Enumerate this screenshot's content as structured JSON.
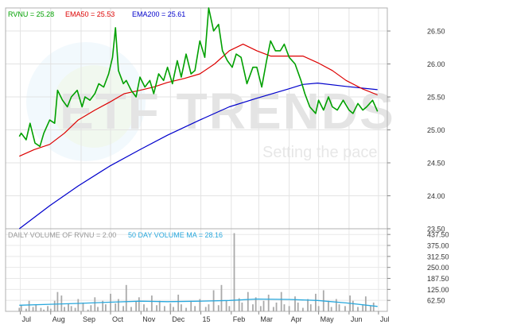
{
  "chart_data": [
    {
      "type": "line",
      "panel": "price",
      "legend": [
        {
          "text": "RVNU = 25.28",
          "color": "#00a000"
        },
        {
          "text": "EMA50 = 25.53",
          "color": "#dd0000"
        },
        {
          "text": "EMA200 = 25.61",
          "color": "#0000cc"
        }
      ],
      "x_labels": [
        "Jul",
        "Aug",
        "Sep",
        "Oct",
        "Nov",
        "Dec",
        "15",
        "Feb",
        "Mar",
        "Apr",
        "May",
        "Jun",
        "Jul"
      ],
      "ylim": [
        23.5,
        26.85
      ],
      "yticks": [
        "26.50",
        "26.00",
        "25.50",
        "25.00",
        "24.50",
        "24.00",
        "23.50"
      ],
      "grid": true,
      "series": [
        {
          "key": "rvnu",
          "color": "#00a000",
          "x": [
            "2014-06-30",
            "2014-07-02",
            "2014-07-07",
            "2014-07-11",
            "2014-07-16",
            "2014-07-21",
            "2014-07-25",
            "2014-07-31",
            "2014-08-05",
            "2014-08-08",
            "2014-08-13",
            "2014-08-18",
            "2014-08-22",
            "2014-08-28",
            "2014-09-02",
            "2014-09-05",
            "2014-09-10",
            "2014-09-15",
            "2014-09-19",
            "2014-09-24",
            "2014-09-29",
            "2014-10-03",
            "2014-10-06",
            "2014-10-09",
            "2014-10-14",
            "2014-10-17",
            "2014-10-22",
            "2014-10-27",
            "2014-10-31",
            "2014-11-05",
            "2014-11-10",
            "2014-11-14",
            "2014-11-19",
            "2014-11-24",
            "2014-11-28",
            "2014-12-03",
            "2014-12-08",
            "2014-12-12",
            "2014-12-17",
            "2014-12-22",
            "2014-12-26",
            "2014-12-31",
            "2015-01-05",
            "2015-01-09",
            "2015-01-14",
            "2015-01-19",
            "2015-01-23",
            "2015-01-28",
            "2015-02-02",
            "2015-02-06",
            "2015-02-11",
            "2015-02-17",
            "2015-02-23",
            "2015-02-27",
            "2015-03-04",
            "2015-03-09",
            "2015-03-13",
            "2015-03-18",
            "2015-03-23",
            "2015-03-27",
            "2015-04-01",
            "2015-04-07",
            "2015-04-13",
            "2015-04-17",
            "2015-04-22",
            "2015-04-28",
            "2015-05-01",
            "2015-05-06",
            "2015-05-11",
            "2015-05-15",
            "2015-05-20",
            "2015-05-26",
            "2015-06-01",
            "2015-06-05",
            "2015-06-10",
            "2015-06-15",
            "2015-06-19",
            "2015-06-25",
            "2015-06-30"
          ],
          "values": [
            24.9,
            24.95,
            24.85,
            25.1,
            24.8,
            24.75,
            24.95,
            25.15,
            25.1,
            25.6,
            25.45,
            25.35,
            25.5,
            25.6,
            25.35,
            25.5,
            25.45,
            25.55,
            25.7,
            25.65,
            25.85,
            26.1,
            26.55,
            25.9,
            25.7,
            25.75,
            25.6,
            25.5,
            25.8,
            25.65,
            25.75,
            25.55,
            25.85,
            25.75,
            25.95,
            25.7,
            26.05,
            25.8,
            26.15,
            25.85,
            25.9,
            26.35,
            26.1,
            26.85,
            26.5,
            26.6,
            26.2,
            26.05,
            25.95,
            26.15,
            26.1,
            25.7,
            25.95,
            25.95,
            25.65,
            26.05,
            26.35,
            26.2,
            26.2,
            26.3,
            26.1,
            26.0,
            25.75,
            25.55,
            25.35,
            25.25,
            25.45,
            25.3,
            25.5,
            25.35,
            25.3,
            25.45,
            25.3,
            25.25,
            25.4,
            25.3,
            25.35,
            25.45,
            25.28
          ]
        },
        {
          "key": "ema50",
          "color": "#dd0000",
          "x": [
            "2014-06-30",
            "2014-07-15",
            "2014-07-31",
            "2014-08-15",
            "2014-08-29",
            "2014-09-15",
            "2014-09-30",
            "2014-10-15",
            "2014-10-31",
            "2014-11-14",
            "2014-11-28",
            "2014-12-15",
            "2014-12-31",
            "2015-01-15",
            "2015-01-30",
            "2015-02-13",
            "2015-02-27",
            "2015-03-13",
            "2015-03-31",
            "2015-04-15",
            "2015-04-30",
            "2015-05-15",
            "2015-05-29",
            "2015-06-15",
            "2015-06-30"
          ],
          "values": [
            24.6,
            24.7,
            24.78,
            24.95,
            25.15,
            25.3,
            25.42,
            25.55,
            25.6,
            25.65,
            25.72,
            25.78,
            25.85,
            26.0,
            26.2,
            26.3,
            26.2,
            26.12,
            26.12,
            26.12,
            26.02,
            25.9,
            25.75,
            25.62,
            25.53
          ]
        },
        {
          "key": "ema200",
          "color": "#0000cc",
          "x": [
            "2014-06-30",
            "2014-07-31",
            "2014-08-29",
            "2014-09-30",
            "2014-10-31",
            "2014-11-28",
            "2014-12-31",
            "2015-01-30",
            "2015-02-27",
            "2015-03-31",
            "2015-04-15",
            "2015-04-30",
            "2015-05-29",
            "2015-06-30"
          ],
          "values": [
            23.5,
            23.85,
            24.15,
            24.45,
            24.7,
            24.92,
            25.15,
            25.35,
            25.48,
            25.62,
            25.69,
            25.71,
            25.66,
            25.61
          ]
        }
      ]
    },
    {
      "type": "bar",
      "panel": "volume",
      "legend": [
        {
          "text": "DAILY VOLUME OF RVNU = 2.00",
          "color": "#999999"
        },
        {
          "text": "50 DAY VOLUME MA = 28.16",
          "color": "#29a8dd"
        }
      ],
      "ylim": [
        0,
        470
      ],
      "yticks": [
        "437.50",
        "375.00",
        "312.50",
        "250.00",
        "187.50",
        "125.00",
        "62.50"
      ],
      "bar_color": "#aaaaaa",
      "ma_color": "#29a8dd",
      "volume_x": [
        "2014-06-30",
        "2014-07-02",
        "2014-07-07",
        "2014-07-10",
        "2014-07-14",
        "2014-07-17",
        "2014-07-22",
        "2014-07-25",
        "2014-07-29",
        "2014-08-01",
        "2014-08-05",
        "2014-08-08",
        "2014-08-12",
        "2014-08-15",
        "2014-08-19",
        "2014-08-22",
        "2014-08-26",
        "2014-08-29",
        "2014-09-03",
        "2014-09-08",
        "2014-09-11",
        "2014-09-15",
        "2014-09-18",
        "2014-09-23",
        "2014-09-26",
        "2014-10-01",
        "2014-10-06",
        "2014-10-09",
        "2014-10-14",
        "2014-10-17",
        "2014-10-22",
        "2014-10-27",
        "2014-10-30",
        "2014-11-04",
        "2014-11-07",
        "2014-11-12",
        "2014-11-17",
        "2014-11-20",
        "2014-11-25",
        "2014-12-01",
        "2014-12-04",
        "2014-12-09",
        "2014-12-12",
        "2014-12-17",
        "2014-12-22",
        "2014-12-26",
        "2014-12-31",
        "2015-01-06",
        "2015-01-09",
        "2015-01-14",
        "2015-01-19",
        "2015-01-22",
        "2015-01-27",
        "2015-01-30",
        "2015-02-04",
        "2015-02-09",
        "2015-02-12",
        "2015-02-18",
        "2015-02-23",
        "2015-02-26",
        "2015-03-03",
        "2015-03-06",
        "2015-03-11",
        "2015-03-16",
        "2015-03-19",
        "2015-03-24",
        "2015-03-27",
        "2015-04-01",
        "2015-04-07",
        "2015-04-10",
        "2015-04-15",
        "2015-04-20",
        "2015-04-23",
        "2015-04-28",
        "2015-05-01",
        "2015-05-06",
        "2015-05-11",
        "2015-05-14",
        "2015-05-19",
        "2015-05-22",
        "2015-05-28",
        "2015-06-02",
        "2015-06-05",
        "2015-06-10",
        "2015-06-15",
        "2015-06-18",
        "2015-06-23",
        "2015-06-26",
        "2015-06-30"
      ],
      "volume_values": [
        20,
        35,
        15,
        60,
        25,
        40,
        20,
        10,
        30,
        15,
        60,
        110,
        90,
        25,
        45,
        30,
        20,
        70,
        50,
        10,
        35,
        80,
        25,
        60,
        40,
        100,
        45,
        70,
        30,
        150,
        25,
        55,
        80,
        40,
        20,
        90,
        35,
        60,
        30,
        45,
        25,
        95,
        40,
        20,
        60,
        30,
        70,
        25,
        40,
        120,
        35,
        150,
        60,
        30,
        445,
        75,
        50,
        110,
        40,
        80,
        30,
        60,
        95,
        25,
        50,
        110,
        40,
        30,
        85,
        50,
        20,
        70,
        40,
        100,
        30,
        120,
        60,
        25,
        70,
        40,
        30,
        90,
        60,
        25,
        40,
        85,
        30,
        50,
        2
      ],
      "ma_x": [
        "2014-06-30",
        "2014-07-31",
        "2014-08-29",
        "2014-09-30",
        "2014-10-31",
        "2014-11-28",
        "2014-12-31",
        "2015-01-30",
        "2015-02-27",
        "2015-03-31",
        "2015-04-30",
        "2015-05-29",
        "2015-06-30"
      ],
      "ma_values": [
        35,
        40,
        45,
        52,
        58,
        55,
        58,
        62,
        70,
        68,
        62,
        48,
        28.16
      ]
    }
  ]
}
